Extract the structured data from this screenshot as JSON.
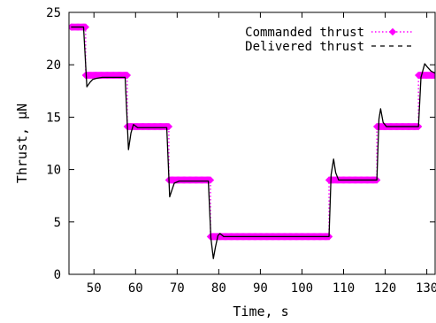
{
  "chart_data": {
    "type": "line",
    "title": "",
    "xlabel": "Time, s",
    "ylabel": "Thrust, µN",
    "xlim": [
      44,
      132
    ],
    "ylim": [
      0,
      25
    ],
    "xticks": [
      50,
      60,
      70,
      80,
      90,
      100,
      110,
      120,
      130
    ],
    "yticks": [
      0,
      5,
      10,
      15,
      20,
      25
    ],
    "grid": false,
    "legend_position": "top-right",
    "series": [
      {
        "name": "Commanded thrust",
        "style": "dotted line with diamond markers",
        "color": "#ff00ff",
        "x": [
          44.5,
          48,
          48,
          58,
          58,
          68,
          68,
          78,
          78,
          106.5,
          106.5,
          118,
          118,
          128,
          128,
          132
        ],
        "y": [
          23.6,
          23.6,
          19.0,
          19.0,
          14.1,
          14.1,
          9.0,
          9.0,
          3.6,
          3.6,
          9.0,
          9.0,
          14.1,
          14.1,
          19.0,
          19.0
        ]
      },
      {
        "name": "Delivered thrust",
        "style": "dashed line",
        "color": "#000000",
        "x": [
          44.5,
          47.5,
          48.3,
          49.0,
          49.7,
          50.5,
          52,
          57.5,
          58.3,
          58.9,
          59.5,
          60.5,
          62,
          67.5,
          68.2,
          68.7,
          69.3,
          70.5,
          72,
          77.5,
          78.1,
          78.7,
          79.2,
          79.8,
          80.3,
          81.2,
          82,
          106.5,
          107.0,
          107.6,
          108.1,
          108.8,
          110,
          118.0,
          118.5,
          118.9,
          119.5,
          120.3,
          122,
          128.0,
          128.6,
          129.5,
          130.1,
          131.0,
          132
        ],
        "y": [
          23.6,
          23.6,
          17.9,
          18.3,
          18.6,
          18.7,
          18.8,
          18.8,
          11.9,
          13.5,
          14.3,
          14.0,
          14.0,
          14.0,
          7.4,
          8.0,
          8.7,
          8.9,
          8.9,
          8.9,
          3.5,
          1.5,
          2.6,
          3.7,
          3.9,
          3.6,
          3.6,
          3.6,
          9.5,
          11.0,
          9.7,
          9.0,
          9.0,
          9.0,
          14.8,
          15.8,
          14.5,
          14.1,
          14.1,
          14.1,
          18.8,
          20.1,
          19.8,
          19.4,
          19.2
        ]
      }
    ]
  }
}
